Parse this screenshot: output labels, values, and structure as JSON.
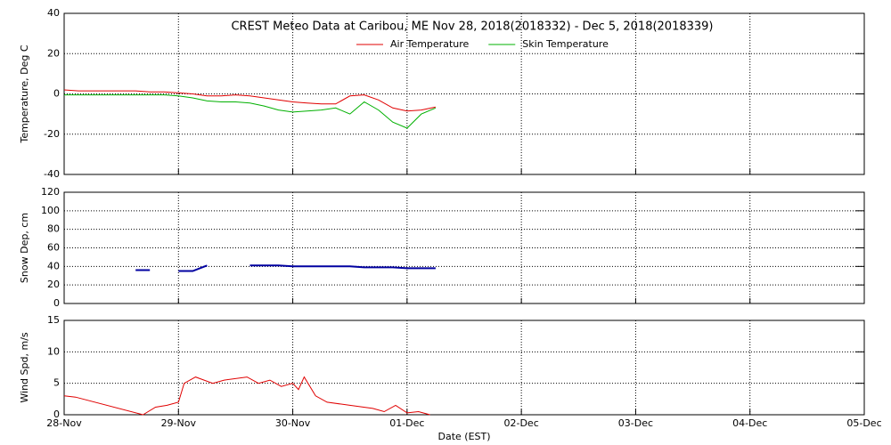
{
  "chart_data": [
    {
      "type": "line",
      "title": "CREST Meteo Data at Caribou, ME    Nov 28, 2018(2018332) - Dec  5, 2018(2018339)",
      "ylabel": "Temperature, Deg C",
      "xlim": [
        0,
        7
      ],
      "ylim": [
        -40,
        40
      ],
      "yticks": [
        -40,
        -20,
        0,
        20,
        40
      ],
      "grid": true,
      "legend": "top",
      "x": [
        0,
        0.125,
        0.25,
        0.375,
        0.5,
        0.625,
        0.75,
        0.875,
        1,
        1.125,
        1.25,
        1.375,
        1.5,
        1.625,
        1.75,
        1.875,
        2,
        2.125,
        2.25,
        2.375,
        2.5,
        2.625,
        2.75,
        2.875,
        3,
        3.125,
        3.25
      ],
      "series": [
        {
          "name": "Air Temperature",
          "color": "#e00000",
          "values": [
            2,
            1.5,
            1.5,
            1.5,
            1.5,
            1.5,
            1,
            1,
            0.5,
            0,
            -1,
            -1,
            -0.5,
            -1,
            -2,
            -3,
            -4,
            -4.5,
            -5,
            -5,
            -1,
            -0.5,
            -3,
            -7,
            -8.5,
            -8,
            -6.5
          ]
        },
        {
          "name": "Skin Temperature",
          "color": "#00b000",
          "values": [
            -0.5,
            -0.5,
            -0.5,
            -0.5,
            -0.5,
            -0.5,
            -0.5,
            -0.5,
            -1,
            -2,
            -3.5,
            -4,
            -4,
            -4.5,
            -6,
            -8,
            -9,
            -8.5,
            -8,
            -7,
            -10,
            -4,
            -8,
            -14,
            -17,
            -10,
            -7
          ]
        }
      ]
    },
    {
      "type": "line",
      "ylabel": "Snow Dep, cm",
      "xlim": [
        0,
        7
      ],
      "ylim": [
        0,
        120
      ],
      "yticks": [
        0,
        20,
        40,
        60,
        80,
        100,
        120
      ],
      "grid": true,
      "x": [
        0,
        0.125,
        0.25,
        0.375,
        0.5,
        0.625,
        0.75,
        0.875,
        1,
        1.125,
        1.25,
        1.375,
        1.5,
        1.625,
        1.75,
        1.875,
        2,
        2.125,
        2.25,
        2.375,
        2.5,
        2.625,
        2.75,
        2.875,
        3,
        3.125,
        3.25
      ],
      "series": [
        {
          "color": "#0000a0",
          "values": [
            null,
            null,
            null,
            null,
            null,
            36,
            36,
            null,
            35,
            35,
            41,
            null,
            null,
            41,
            41,
            41,
            40,
            40,
            40,
            40,
            40,
            39,
            39,
            39,
            38,
            38,
            38
          ]
        }
      ]
    },
    {
      "type": "line",
      "ylabel": "Wind Spd, m/s",
      "xlabel": "Date (EST)",
      "xlim": [
        0,
        7
      ],
      "ylim": [
        0,
        15
      ],
      "yticks": [
        0,
        5,
        10,
        15
      ],
      "grid": true,
      "xticks": [
        {
          "value": 0,
          "label": "28-Nov"
        },
        {
          "value": 1,
          "label": "29-Nov"
        },
        {
          "value": 2,
          "label": "30-Nov"
        },
        {
          "value": 3,
          "label": "01-Dec"
        },
        {
          "value": 4,
          "label": "02-Dec"
        },
        {
          "value": 5,
          "label": "03-Dec"
        },
        {
          "value": 6,
          "label": "04-Dec"
        },
        {
          "value": 7,
          "label": "05-Dec"
        }
      ],
      "x": [
        0,
        0.1,
        0.69,
        0.8,
        0.9,
        1,
        1.05,
        1.15,
        1.3,
        1.4,
        1.6,
        1.7,
        1.8,
        1.9,
        2,
        2.05,
        2.1,
        2.2,
        2.3,
        2.5,
        2.7,
        2.8,
        2.9,
        3,
        3.1,
        3.2
      ],
      "series": [
        {
          "color": "#e00000",
          "values": [
            3,
            2.8,
            0,
            1.2,
            1.5,
            2,
            5,
            6,
            5,
            5.5,
            6,
            5,
            5.5,
            4.5,
            5,
            4,
            6,
            3,
            2,
            1.5,
            1,
            0.5,
            1.5,
            0.3,
            0.5,
            0
          ]
        }
      ]
    }
  ]
}
